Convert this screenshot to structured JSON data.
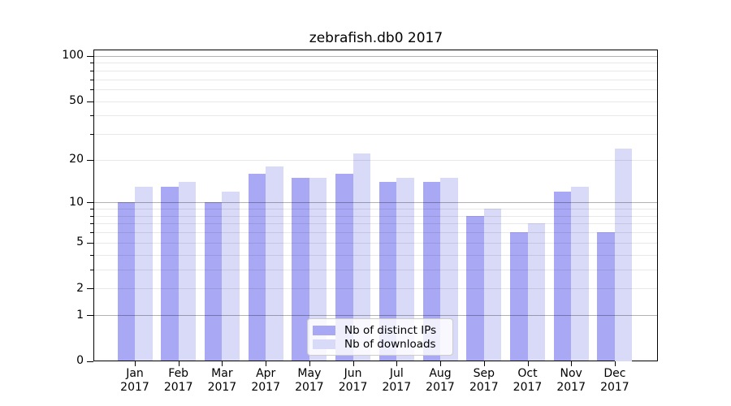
{
  "chart_data": {
    "type": "bar",
    "title": "zebrafish.db0 2017",
    "year": "2017",
    "categories": [
      "Jan",
      "Feb",
      "Mar",
      "Apr",
      "May",
      "Jun",
      "Jul",
      "Aug",
      "Sep",
      "Oct",
      "Nov",
      "Dec"
    ],
    "series": [
      {
        "name": "Nb of distinct IPs",
        "color": "#a8a8f5",
        "values": [
          10,
          13,
          10,
          16,
          15,
          16,
          14,
          14,
          8,
          6,
          12,
          6
        ]
      },
      {
        "name": "Nb of downloads",
        "color": "#d9d9f8",
        "values": [
          13,
          14,
          12,
          18,
          15,
          22,
          15,
          15,
          9,
          7,
          13,
          24
        ]
      }
    ],
    "y_axis": {
      "scale": "log1p",
      "tick_labels": [
        0,
        1,
        2,
        5,
        10,
        20,
        50,
        100
      ],
      "major_grid": [
        1,
        10,
        100
      ],
      "minor_grid": [
        2,
        3,
        4,
        5,
        6,
        7,
        8,
        9,
        20,
        30,
        40,
        50,
        60,
        70,
        80,
        90
      ],
      "ylim": [
        0,
        110
      ]
    },
    "legend": {
      "position": "lower-center"
    },
    "grid": "both",
    "xlabel": "",
    "ylabel": ""
  }
}
